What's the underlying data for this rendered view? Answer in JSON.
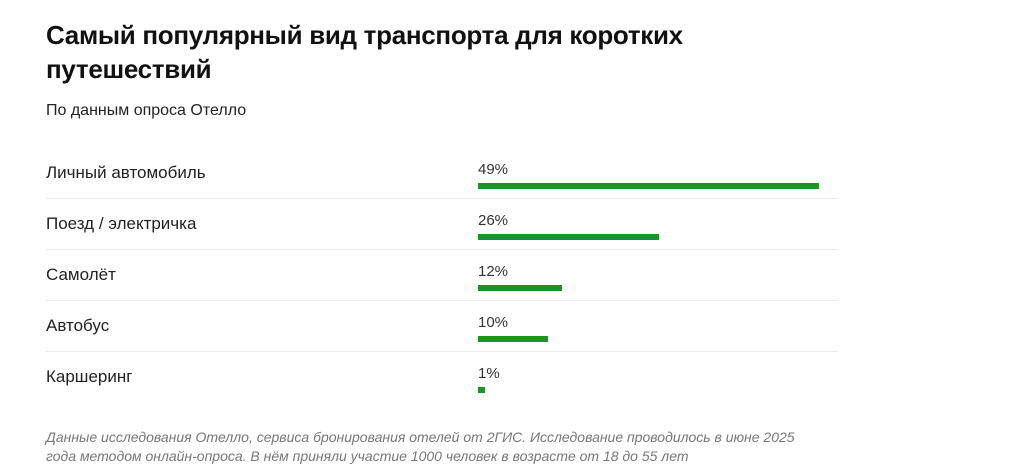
{
  "title": "Самый популярный вид транспорта для коротких путешествий",
  "subtitle": "По данным опроса Отелло",
  "chart_data": {
    "type": "bar",
    "orientation": "horizontal",
    "categories": [
      "Личный автомобиль",
      "Поезд / электричка",
      "Самолёт",
      "Автобус",
      "Каршеринг"
    ],
    "values": [
      49,
      26,
      12,
      10,
      1
    ],
    "labels": [
      "49%",
      "26%",
      "12%",
      "10%",
      "1%"
    ],
    "unit": "%",
    "bar_color": "#1a9626",
    "grid": false
  },
  "footnote": "Данные исследования Отелло, сервиса бронирования отелей от 2ГИС. Исследование проводилось в июне 2025 года методом онлайн-опроса. В нём приняли участие 1000 человек в возрасте от 18 до 55 лет"
}
